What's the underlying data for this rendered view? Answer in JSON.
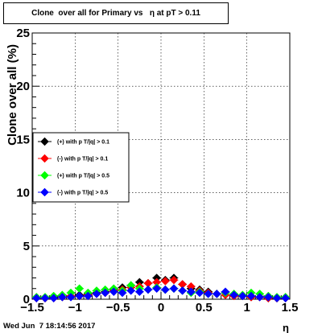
{
  "chart_data": {
    "type": "scatter",
    "title": "Clone  over all for Primary vs   η at pT > 0.11",
    "xlabel": "η",
    "ylabel": "Clone  over all (%)",
    "xlim": [
      -1.5,
      1.5
    ],
    "ylim": [
      0,
      25
    ],
    "x_ticks": [
      -1.5,
      -1,
      -0.5,
      0,
      0.5,
      1,
      1.5
    ],
    "x_tick_labels": [
      "−1.5",
      "−1",
      "−0.5",
      "0",
      "0.5",
      "1",
      "1.5"
    ],
    "y_ticks": [
      0,
      5,
      10,
      15,
      20,
      25
    ],
    "y_tick_labels": [
      "0",
      "5",
      "10",
      "15",
      "20",
      "25"
    ],
    "grid": true,
    "legend_position": "left-middle",
    "x": [
      -1.45,
      -1.35,
      -1.25,
      -1.15,
      -1.05,
      -0.95,
      -0.85,
      -0.75,
      -0.65,
      -0.55,
      -0.45,
      -0.35,
      -0.25,
      -0.15,
      -0.05,
      0.05,
      0.15,
      0.25,
      0.35,
      0.45,
      0.55,
      0.65,
      0.75,
      0.85,
      0.95,
      1.05,
      1.15,
      1.25,
      1.35,
      1.45
    ],
    "series": [
      {
        "name": "(+) with p T/|q| > 0.1",
        "color": "#000000",
        "values": [
          0.1,
          0.1,
          0.2,
          0.2,
          0.3,
          0.4,
          0.5,
          0.6,
          0.7,
          0.9,
          1.1,
          1.3,
          1.6,
          1.5,
          2.0,
          1.8,
          2.0,
          1.4,
          1.0,
          0.9,
          0.7,
          0.5,
          0.6,
          0.4,
          0.3,
          0.2,
          0.2,
          0.1,
          0.1,
          0.1
        ]
      },
      {
        "name": "(-) with p T/|q| > 0.1",
        "color": "#ff0000",
        "values": [
          0.1,
          0.1,
          0.1,
          0.2,
          0.3,
          0.3,
          0.4,
          0.5,
          0.6,
          0.8,
          0.9,
          1.1,
          1.2,
          1.5,
          1.6,
          1.7,
          1.8,
          1.4,
          1.2,
          0.8,
          0.6,
          0.5,
          0.4,
          0.3,
          0.3,
          0.2,
          0.2,
          0.1,
          0.1,
          0.1
        ]
      },
      {
        "name": "(+) with p T/|q| > 0.5",
        "color": "#00ff00",
        "values": [
          0.2,
          0.2,
          0.3,
          0.4,
          0.6,
          1.0,
          0.6,
          0.8,
          0.9,
          1.0,
          0.8,
          1.3,
          1.0,
          0.9,
          1.1,
          0.9,
          1.0,
          0.8,
          0.6,
          0.7,
          0.5,
          0.5,
          0.6,
          0.5,
          0.4,
          0.6,
          0.5,
          0.3,
          0.2,
          0.2
        ]
      },
      {
        "name": "(-) with p T/|q| > 0.5",
        "color": "#0000ff",
        "values": [
          0.1,
          0.1,
          0.1,
          0.2,
          0.2,
          0.3,
          0.3,
          0.5,
          0.6,
          0.7,
          0.6,
          0.8,
          0.7,
          0.9,
          1.0,
          0.9,
          1.0,
          0.8,
          0.7,
          0.6,
          0.5,
          0.5,
          0.7,
          0.4,
          0.3,
          0.3,
          0.2,
          0.2,
          0.1,
          0.1
        ]
      }
    ]
  },
  "timestamp": "Wed Jun  7 18:14:56 2017"
}
